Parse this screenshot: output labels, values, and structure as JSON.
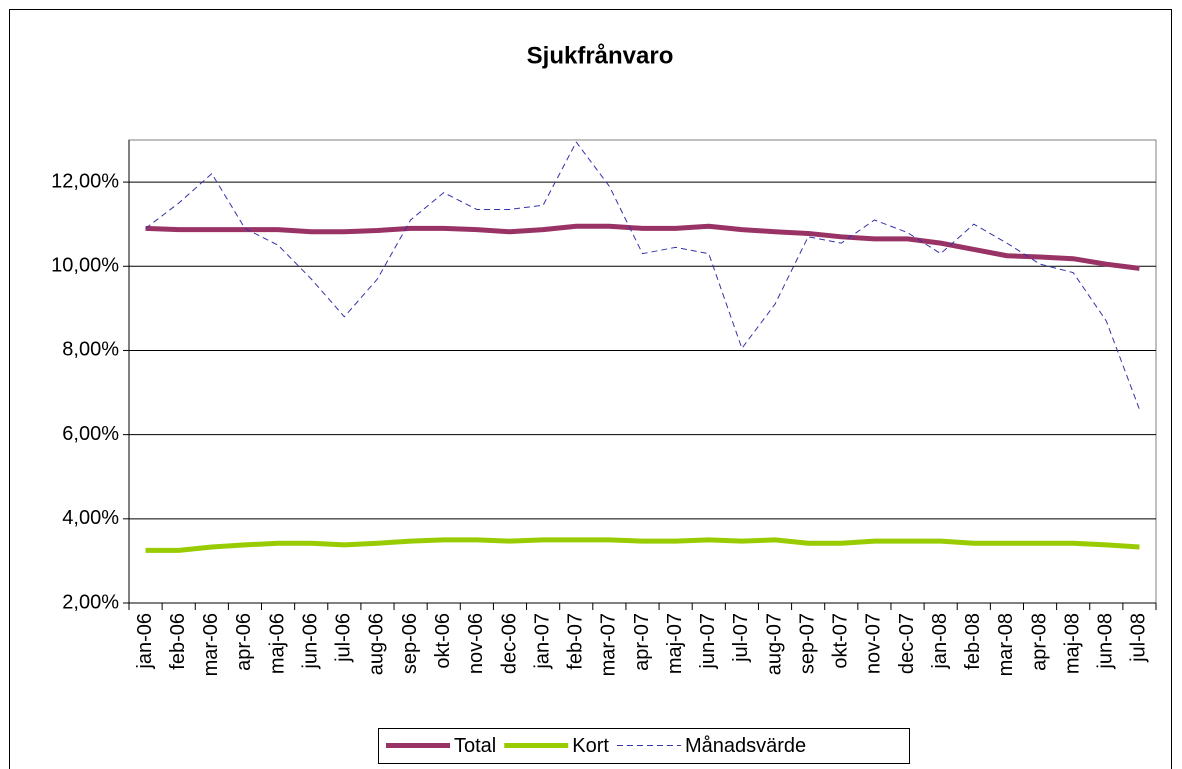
{
  "chart_data": {
    "type": "line",
    "title": "Sjukfrånvaro",
    "categories": [
      "jan-06",
      "feb-06",
      "mar-06",
      "apr-06",
      "maj-06",
      "jun-06",
      "jul-06",
      "aug-06",
      "sep-06",
      "okt-06",
      "nov-06",
      "dec-06",
      "jan-07",
      "feb-07",
      "mar-07",
      "apr-07",
      "maj-07",
      "jun-07",
      "jul-07",
      "aug-07",
      "sep-07",
      "okt-07",
      "nov-07",
      "dec-07",
      "jan-08",
      "feb-08",
      "mar-08",
      "apr-08",
      "maj-08",
      "jun-08",
      "jul-08"
    ],
    "series": [
      {
        "name": "Total",
        "color": "#993366",
        "style": "solid",
        "values": [
          10.9,
          10.87,
          10.87,
          10.87,
          10.87,
          10.82,
          10.82,
          10.85,
          10.9,
          10.9,
          10.87,
          10.82,
          10.87,
          10.95,
          10.95,
          10.9,
          10.9,
          10.95,
          10.87,
          10.82,
          10.78,
          10.7,
          10.65,
          10.65,
          10.55,
          10.4,
          10.25,
          10.22,
          10.18,
          10.05,
          9.95
        ]
      },
      {
        "name": "Kort",
        "color": "#99cc00",
        "style": "solid",
        "values": [
          3.25,
          3.25,
          3.33,
          3.38,
          3.42,
          3.42,
          3.38,
          3.42,
          3.47,
          3.5,
          3.5,
          3.47,
          3.5,
          3.5,
          3.5,
          3.47,
          3.47,
          3.5,
          3.47,
          3.5,
          3.42,
          3.42,
          3.47,
          3.47,
          3.47,
          3.42,
          3.42,
          3.42,
          3.42,
          3.38,
          3.33
        ]
      },
      {
        "name": "Månadsvärde",
        "color": "#3333aa",
        "style": "dashed",
        "values": [
          10.9,
          11.5,
          12.2,
          10.9,
          10.5,
          9.7,
          8.8,
          9.7,
          11.1,
          11.75,
          11.35,
          11.35,
          11.45,
          12.95,
          11.9,
          10.3,
          10.45,
          10.3,
          8.05,
          9.1,
          10.7,
          10.55,
          11.1,
          10.8,
          10.3,
          11.0,
          10.55,
          10.05,
          9.85,
          8.7,
          6.6
        ]
      }
    ],
    "ylim": [
      2,
      13
    ],
    "yticks": [
      {
        "value": 2,
        "label": "2,00%"
      },
      {
        "value": 4,
        "label": "4,00%"
      },
      {
        "value": 6,
        "label": "6,00%"
      },
      {
        "value": 8,
        "label": "8,00%"
      },
      {
        "value": 10,
        "label": "10,00%"
      },
      {
        "value": 12,
        "label": "12,00%"
      }
    ],
    "grid": true,
    "legend": "bottom"
  }
}
